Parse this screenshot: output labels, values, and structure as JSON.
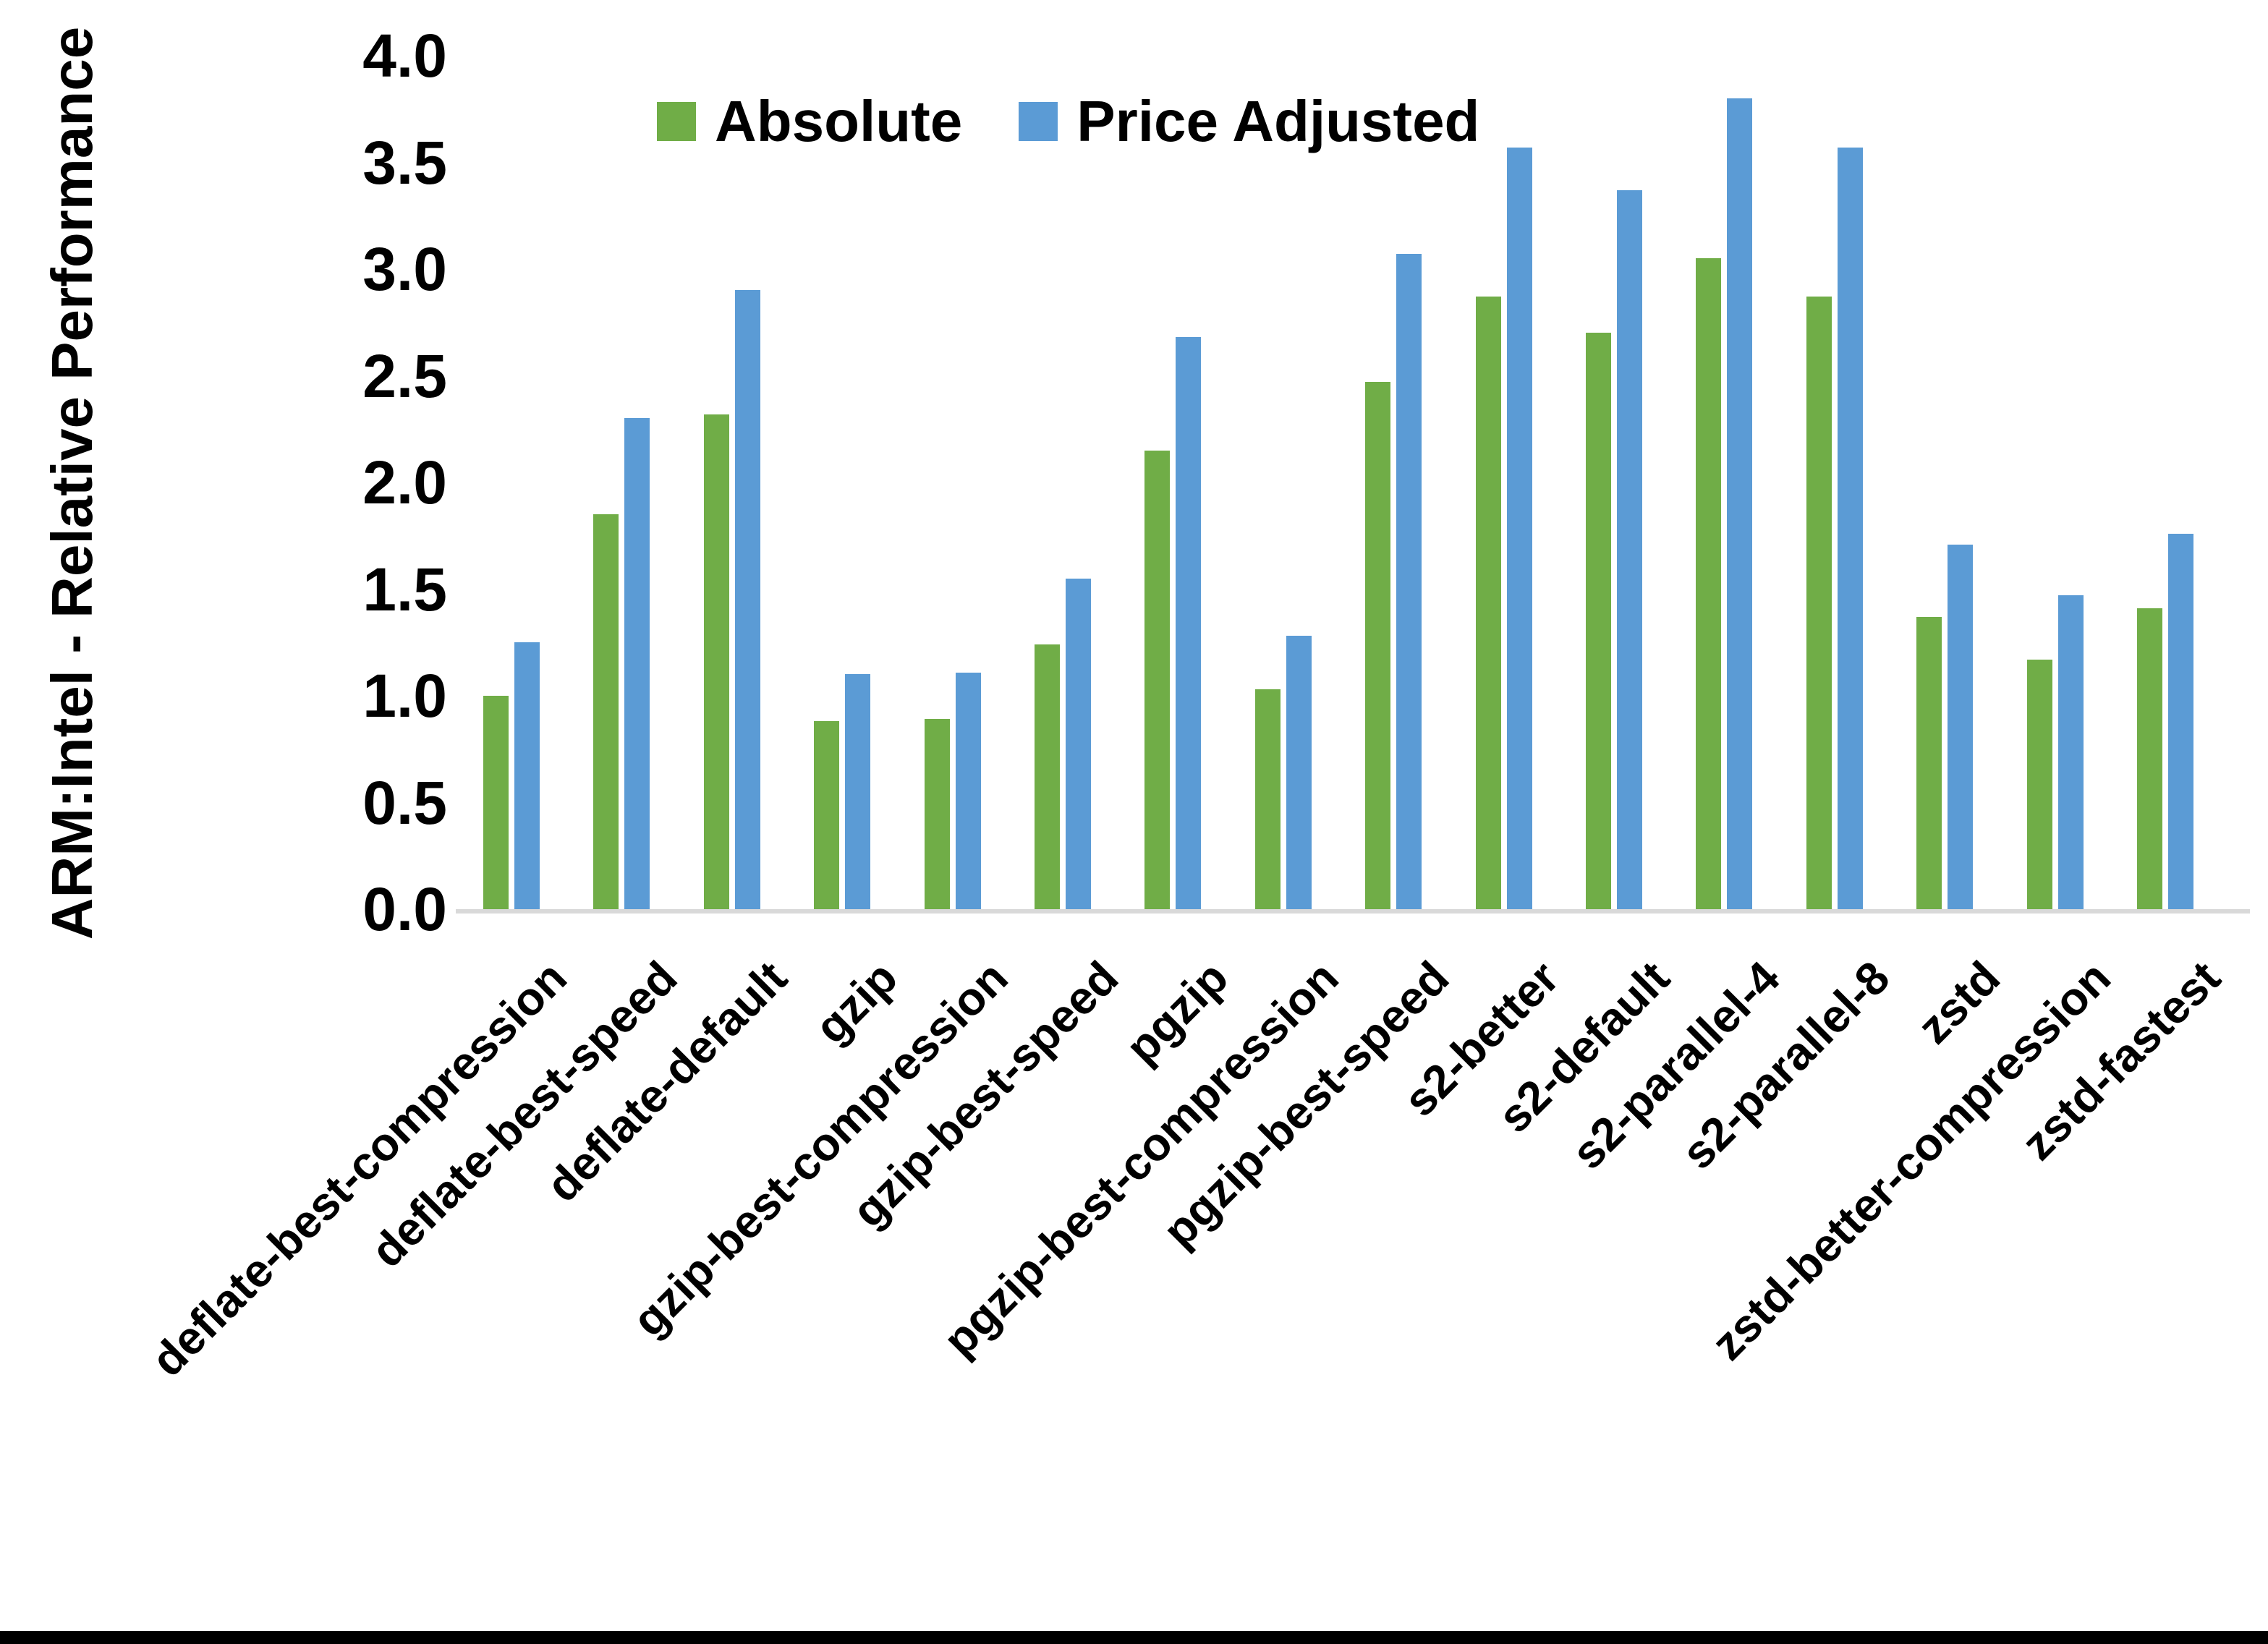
{
  "chart_data": {
    "type": "bar",
    "title": "",
    "ylabel": "ARM:Intel - Relative Performance",
    "xlabel": "",
    "ylim": [
      0.0,
      4.0
    ],
    "ytick_step": 0.5,
    "grid": false,
    "legend_position": "top-center",
    "categories": [
      "deflate-best-compression",
      "deflate-best-speed",
      "deflate-default",
      "gzip",
      "gzip-best-compression",
      "gzip-best-speed",
      "pgzip",
      "pgzip-best-compression",
      "pgzip-best-speed",
      "s2-better",
      "s2-default",
      "s2-parallel-4",
      "s2-parallel-8",
      "zstd",
      "zstd-better-compression",
      "zstd-fastest"
    ],
    "series": [
      {
        "name": "Absolute",
        "color": "#70AD47",
        "values": [
          1.0,
          1.85,
          2.32,
          0.88,
          0.89,
          1.24,
          2.15,
          1.03,
          2.47,
          2.87,
          2.7,
          3.05,
          2.87,
          1.37,
          1.17,
          1.41
        ]
      },
      {
        "name": "Price Adjusted",
        "color": "#5B9BD5",
        "values": [
          1.25,
          2.3,
          2.9,
          1.1,
          1.11,
          1.55,
          2.68,
          1.28,
          3.07,
          3.57,
          3.37,
          3.8,
          3.57,
          1.71,
          1.47,
          1.76
        ]
      }
    ]
  },
  "colors": {
    "axis_line": "#d9d9d9",
    "text": "#000000",
    "background": "#ffffff",
    "bottom_border": "#000000"
  }
}
